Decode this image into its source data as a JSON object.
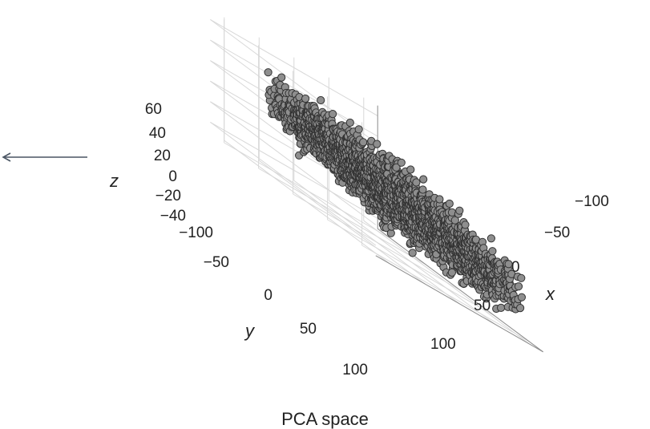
{
  "chart_data": {
    "type": "scatter",
    "title": "PCA space",
    "projection": "3d",
    "axes": {
      "x": {
        "label": "x",
        "ticks": [
          "−100",
          "−50",
          "0",
          "50",
          "100"
        ]
      },
      "y": {
        "label": "y",
        "ticks": [
          "−100",
          "−50",
          "0",
          "50",
          "100"
        ]
      },
      "z": {
        "label": "z",
        "ticks": [
          "−40",
          "−20",
          "0",
          "20",
          "40",
          "60"
        ]
      }
    },
    "xlim": [
      -120,
      120
    ],
    "ylim": [
      -120,
      120
    ],
    "zlim": [
      -50,
      70
    ],
    "grid": true,
    "marker": {
      "color": "#8e8e8e",
      "edge_color": "#333333",
      "shape": "circle"
    },
    "annotation": {
      "type": "arrow",
      "direction": "left",
      "color": "#4a5563"
    },
    "points_note": "dense cloud of several thousand points roughly spanning x −110..90, y −70..100, z −30..50"
  }
}
